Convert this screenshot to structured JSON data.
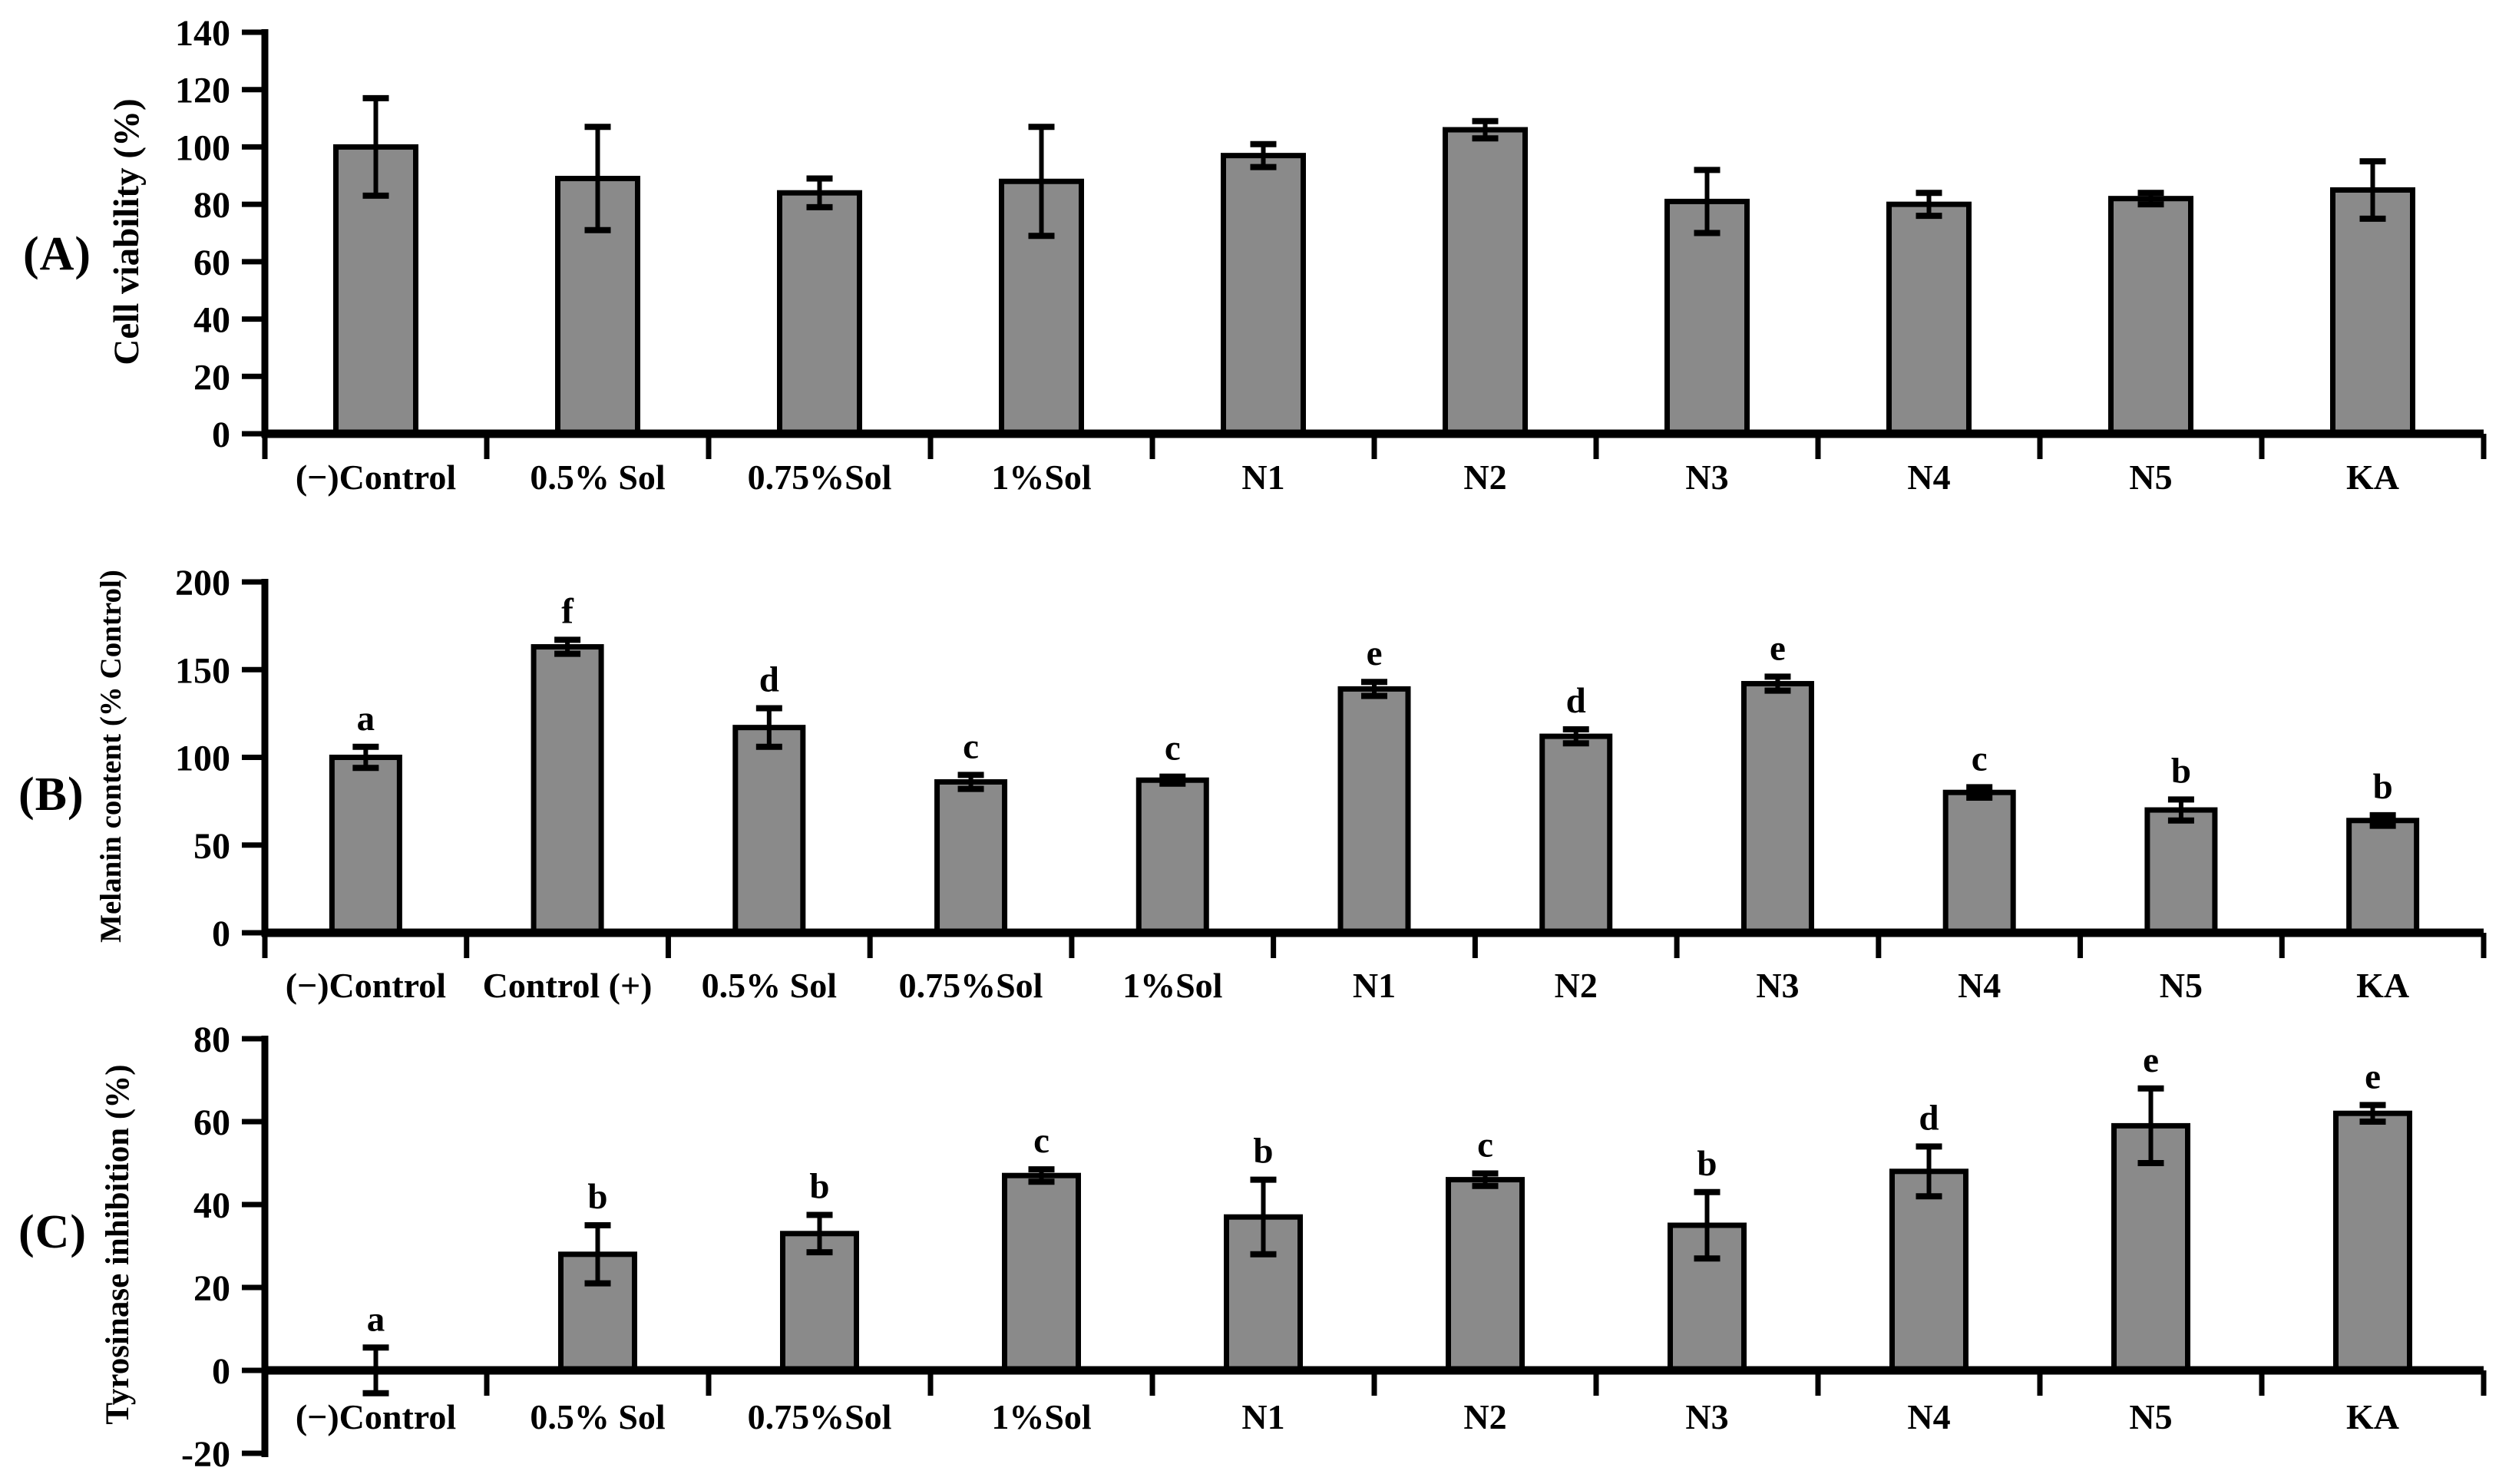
{
  "figure_type": "three-panel bar chart figure",
  "colors": {
    "background": "#ffffff",
    "bar_fill": "#8a8a8a",
    "bar_stroke": "#000000",
    "axis": "#000000",
    "text": "#000000"
  },
  "chart_data": [
    {
      "type": "bar",
      "panel_label": "(A)",
      "ylabel": "Cell viability (%)",
      "xlabel": "",
      "categories": [
        "(−)Control",
        "0.5% Sol",
        "0.75%Sol",
        "1%Sol",
        "N1",
        "N2",
        "N3",
        "N4",
        "N5",
        "KA"
      ],
      "values": [
        100,
        89,
        84,
        88,
        97,
        106,
        81,
        80,
        82,
        85
      ],
      "errors": [
        17,
        18,
        5,
        19,
        4,
        3,
        11,
        4,
        2,
        10
      ],
      "letters": [],
      "yticks": [
        0,
        20,
        40,
        60,
        80,
        100,
        120,
        140
      ],
      "ylim": [
        0,
        140
      ],
      "grid": false,
      "legend": "none"
    },
    {
      "type": "bar",
      "panel_label": "(B)",
      "ylabel": "Melanin content (% Control)",
      "xlabel": "",
      "categories": [
        "(−)Control",
        "Control (+)",
        "0.5% Sol",
        "0.75%Sol",
        "1%Sol",
        "N1",
        "N2",
        "N3",
        "N4",
        "N5",
        "KA"
      ],
      "values": [
        100,
        163,
        117,
        86,
        87,
        139,
        112,
        142,
        80,
        70,
        64
      ],
      "errors": [
        6,
        4,
        11,
        4,
        2,
        4,
        4,
        4,
        3,
        6,
        3
      ],
      "letters": [
        "a",
        "f",
        "d",
        "c",
        "c",
        "e",
        "d",
        "e",
        "c",
        "b",
        "b"
      ],
      "yticks": [
        0,
        50,
        100,
        150,
        200
      ],
      "ylim": [
        0,
        200
      ],
      "grid": false,
      "legend": "none"
    },
    {
      "type": "bar",
      "panel_label": "(C)",
      "ylabel": "Tyrosinase inhibition (%)",
      "xlabel": "",
      "categories": [
        "(−)Control",
        "0.5% Sol",
        "0.75%Sol",
        "1%Sol",
        "N1",
        "N2",
        "N3",
        "N4",
        "N5",
        "KA"
      ],
      "values": [
        0,
        28,
        33,
        47,
        37,
        46,
        35,
        48,
        59,
        62
      ],
      "errors": [
        5.5,
        7,
        4.5,
        1.5,
        9,
        1.5,
        8,
        6,
        9,
        2
      ],
      "letters": [
        "a",
        "b",
        "b",
        "c",
        "b",
        "c",
        "b",
        "d",
        "e",
        "e"
      ],
      "yticks": [
        -20,
        0,
        20,
        40,
        60,
        80
      ],
      "ylim": [
        -20,
        80
      ],
      "grid": false,
      "legend": "none"
    }
  ]
}
